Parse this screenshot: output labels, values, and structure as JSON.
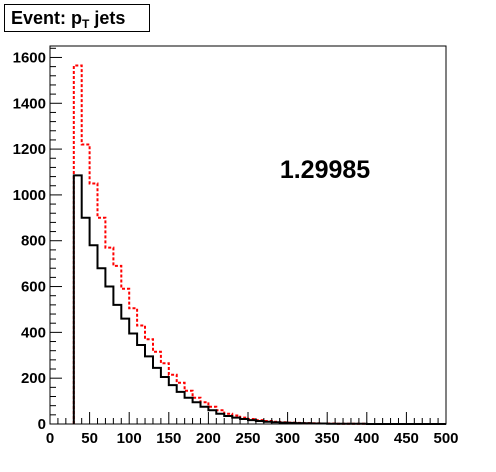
{
  "title": {
    "prefix": "Event: p",
    "subscript": "T",
    "suffix": " jets"
  },
  "annotation": "1.29985",
  "colors": {
    "series_black": "#000000",
    "series_red": "#ff0000"
  },
  "chart_data": {
    "type": "histogram",
    "xlim": [
      0,
      500
    ],
    "ylim": [
      0,
      1650
    ],
    "bin_width": 10,
    "xticks": [
      0,
      50,
      100,
      150,
      200,
      250,
      300,
      350,
      400,
      450,
      500
    ],
    "yticks": [
      0,
      200,
      400,
      600,
      800,
      1000,
      1200,
      1400,
      1600
    ],
    "grid": false,
    "series": [
      {
        "style": "solid",
        "color": "#000000",
        "bins_start": 30,
        "values": [
          1085,
          900,
          780,
          680,
          600,
          520,
          460,
          395,
          345,
          295,
          245,
          205,
          170,
          140,
          115,
          95,
          75,
          60,
          45,
          35,
          28,
          22,
          17,
          13,
          10,
          8,
          6,
          5,
          4,
          3,
          2,
          2,
          1,
          1,
          1,
          1,
          1
        ]
      },
      {
        "style": "dashed",
        "color": "#ff0000",
        "bins_start": 30,
        "values": [
          1565,
          1220,
          1050,
          900,
          770,
          690,
          590,
          505,
          430,
          370,
          315,
          265,
          215,
          180,
          145,
          115,
          95,
          75,
          60,
          45,
          37,
          28,
          22,
          17,
          13,
          10,
          8,
          6,
          5,
          4,
          3,
          2,
          2,
          1,
          1,
          1,
          1
        ]
      }
    ]
  }
}
